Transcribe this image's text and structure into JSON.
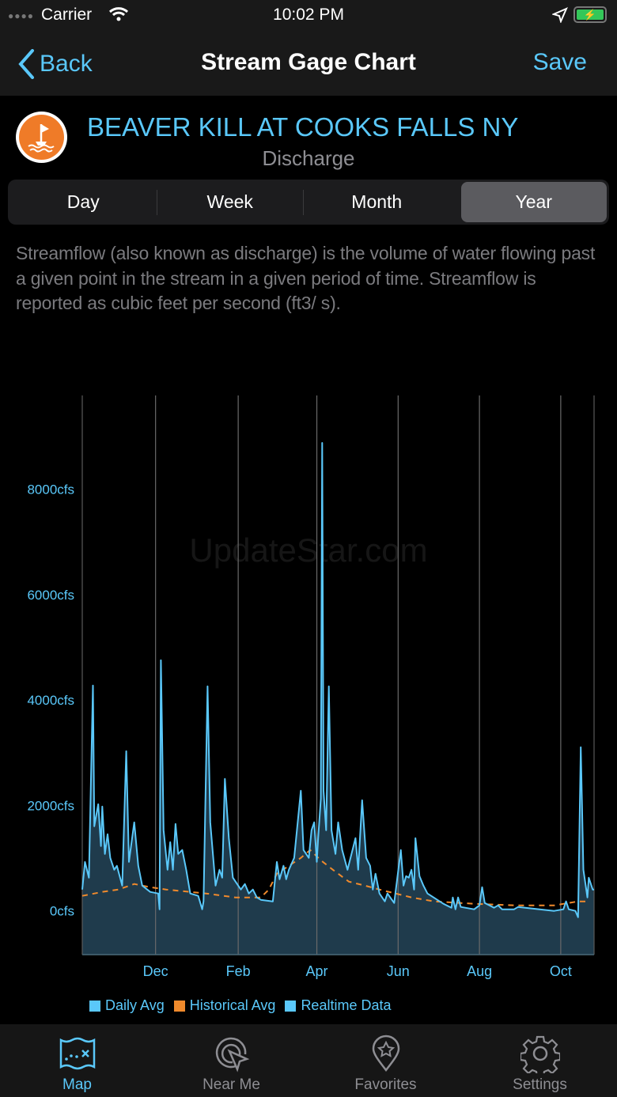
{
  "status_bar": {
    "carrier": "Carrier",
    "time": "10:02 PM",
    "battery_color": "#34c759"
  },
  "nav": {
    "back_label": "Back",
    "title": "Stream Gage Chart",
    "save_label": "Save"
  },
  "station": {
    "name": "BEAVER KILL AT COOKS FALLS NY",
    "parameter": "Discharge",
    "icon": "buoy-flag-icon",
    "icon_color": "#ef7b28"
  },
  "segments": {
    "items": [
      "Day",
      "Week",
      "Month",
      "Year"
    ],
    "selected": "Year"
  },
  "description": "Streamflow (also known as discharge) is the volume of water flowing past a given point in the stream in a given period of time. Streamflow is reported as cubic feet per second (ft3/ s).",
  "watermark": "UpdateStar.com",
  "chart_data": {
    "type": "area",
    "ylim": [
      -830,
      9780
    ],
    "y_ticks": [
      0,
      2000,
      4000,
      6000,
      8000
    ],
    "y_tick_labels": [
      "0cfs",
      "2000cfs",
      "4000cfs",
      "6000cfs",
      "8000cfs"
    ],
    "x_range": [
      "Oct 07",
      "Oct 26"
    ],
    "x_ticks": [
      "Dec 01",
      "Feb 01",
      "Apr 01",
      "Jun 01",
      "Aug 01",
      "Oct 01"
    ],
    "x_tick_labels": [
      "Dec",
      "Feb",
      "Apr",
      "Jun",
      "Aug",
      "Oct"
    ],
    "grid": "vertical",
    "legend": {
      "position": "bottom",
      "items": [
        {
          "label": "Daily Avg",
          "color": "#5ac8fa"
        },
        {
          "label": "Historical Avg",
          "color": "#f08a2c"
        },
        {
          "label": "Realtime Data",
          "color": "#5ac8fa"
        }
      ]
    },
    "series": [
      {
        "name": "Daily Avg",
        "color": "#5ac8fa",
        "fill": "#1f3b4c",
        "points": [
          [
            "Oct 07",
            405
          ],
          [
            "Oct 09",
            930
          ],
          [
            "Oct 12",
            630
          ],
          [
            "Oct 15",
            4275
          ],
          [
            "Oct 16",
            1605
          ],
          [
            "Oct 19",
            2025
          ],
          [
            "Oct 21",
            1230
          ],
          [
            "Oct 22",
            1980
          ],
          [
            "Oct 24",
            1080
          ],
          [
            "Oct 26",
            1455
          ],
          [
            "Oct 28",
            1005
          ],
          [
            "Oct 31",
            780
          ],
          [
            "Nov 02",
            855
          ],
          [
            "Nov 06",
            480
          ],
          [
            "Nov 09",
            3030
          ],
          [
            "Nov 11",
            930
          ],
          [
            "Nov 15",
            1680
          ],
          [
            "Nov 18",
            855
          ],
          [
            "Nov 21",
            480
          ],
          [
            "Nov 27",
            360
          ],
          [
            "Dec 03",
            330
          ],
          [
            "Dec 04",
            30
          ],
          [
            "Dec 05",
            4755
          ],
          [
            "Dec 07",
            1530
          ],
          [
            "Dec 10",
            780
          ],
          [
            "Dec 12",
            1305
          ],
          [
            "Dec 14",
            780
          ],
          [
            "Dec 16",
            1650
          ],
          [
            "Dec 18",
            1080
          ],
          [
            "Dec 21",
            1155
          ],
          [
            "Dec 24",
            780
          ],
          [
            "Dec 27",
            330
          ],
          [
            "Jan 02",
            285
          ],
          [
            "Jan 05",
            30
          ],
          [
            "Jan 06",
            180
          ],
          [
            "Jan 09",
            4260
          ],
          [
            "Jan 11",
            1680
          ],
          [
            "Jan 15",
            480
          ],
          [
            "Jan 18",
            780
          ],
          [
            "Jan 20",
            630
          ],
          [
            "Jan 22",
            2505
          ],
          [
            "Jan 25",
            1380
          ],
          [
            "Jan 28",
            630
          ],
          [
            "Feb 01",
            480
          ],
          [
            "Feb 03",
            405
          ],
          [
            "Feb 06",
            510
          ],
          [
            "Feb 09",
            330
          ],
          [
            "Feb 12",
            405
          ],
          [
            "Feb 15",
            255
          ],
          [
            "Feb 18",
            210
          ],
          [
            "Feb 27",
            180
          ],
          [
            "Mar 02",
            930
          ],
          [
            "Mar 04",
            600
          ],
          [
            "Mar 07",
            855
          ],
          [
            "Mar 09",
            600
          ],
          [
            "Mar 11",
            780
          ],
          [
            "Mar 15",
            1005
          ],
          [
            "Mar 20",
            2280
          ],
          [
            "Mar 22",
            1155
          ],
          [
            "Mar 26",
            1005
          ],
          [
            "Mar 28",
            1530
          ],
          [
            "Mar 30",
            1680
          ],
          [
            "Apr 01",
            930
          ],
          [
            "Apr 02",
            1380
          ],
          [
            "Apr 04",
            2130
          ],
          [
            "Apr 05",
            8880
          ],
          [
            "Apr 06",
            2280
          ],
          [
            "Apr 08",
            1530
          ],
          [
            "Apr 10",
            4260
          ],
          [
            "Apr 12",
            1530
          ],
          [
            "Apr 15",
            1080
          ],
          [
            "Apr 17",
            1680
          ],
          [
            "Apr 20",
            1155
          ],
          [
            "Apr 24",
            780
          ],
          [
            "Apr 30",
            1380
          ],
          [
            "May 02",
            780
          ],
          [
            "May 05",
            2100
          ],
          [
            "May 08",
            1005
          ],
          [
            "May 11",
            855
          ],
          [
            "May 13",
            405
          ],
          [
            "May 15",
            705
          ],
          [
            "May 18",
            330
          ],
          [
            "May 22",
            180
          ],
          [
            "May 24",
            330
          ],
          [
            "May 29",
            150
          ],
          [
            "Jun 03",
            1155
          ],
          [
            "Jun 05",
            480
          ],
          [
            "Jun 07",
            660
          ],
          [
            "Jun 09",
            630
          ],
          [
            "Jun 11",
            780
          ],
          [
            "Jun 13",
            405
          ],
          [
            "Jun 14",
            1380
          ],
          [
            "Jun 17",
            660
          ],
          [
            "Jun 20",
            480
          ],
          [
            "Jun 23",
            330
          ],
          [
            "Jul 05",
            135
          ],
          [
            "Jul 11",
            60
          ],
          [
            "Jul 12",
            255
          ],
          [
            "Jul 14",
            30
          ],
          [
            "Jul 16",
            255
          ],
          [
            "Jul 18",
            75
          ],
          [
            "Jul 28",
            30
          ],
          [
            "Aug 01",
            105
          ],
          [
            "Aug 03",
            450
          ],
          [
            "Aug 05",
            150
          ],
          [
            "Aug 12",
            60
          ],
          [
            "Aug 15",
            105
          ],
          [
            "Aug 18",
            30
          ],
          [
            "Aug 27",
            30
          ],
          [
            "Aug 30",
            75
          ],
          [
            "Sep 26",
            0
          ],
          [
            "Oct 03",
            30
          ],
          [
            "Oct 05",
            180
          ],
          [
            "Oct 07",
            30
          ],
          [
            "Oct 12",
            0
          ],
          [
            "Oct 14",
            -120
          ],
          [
            "Oct 16",
            3105
          ],
          [
            "Oct 18",
            780
          ],
          [
            "Oct 21",
            255
          ],
          [
            "Oct 22",
            630
          ],
          [
            "Oct 25",
            405
          ],
          [
            "Oct 26",
            405
          ]
        ]
      },
      {
        "name": "Historical Avg",
        "color": "#f08a2c",
        "dashed": true,
        "points": [
          [
            "Oct 07",
            285
          ],
          [
            "Oct 22",
            360
          ],
          [
            "Nov 03",
            405
          ],
          [
            "Nov 15",
            510
          ],
          [
            "Nov 27",
            450
          ],
          [
            "Dec 09",
            405
          ],
          [
            "Dec 27",
            360
          ],
          [
            "Jan 08",
            330
          ],
          [
            "Jan 30",
            255
          ],
          [
            "Feb 18",
            255
          ],
          [
            "Feb 24",
            405
          ],
          [
            "Mar 02",
            705
          ],
          [
            "Mar 11",
            855
          ],
          [
            "Mar 20",
            1005
          ],
          [
            "Mar 27",
            1155
          ],
          [
            "Apr 04",
            960
          ],
          [
            "Apr 13",
            780
          ],
          [
            "Apr 25",
            555
          ],
          [
            "May 07",
            480
          ],
          [
            "May 18",
            405
          ],
          [
            "May 30",
            330
          ],
          [
            "Jun 11",
            255
          ],
          [
            "Jun 28",
            180
          ],
          [
            "Jul 28",
            135
          ],
          [
            "Aug 27",
            105
          ],
          [
            "Sep 26",
            105
          ],
          [
            "Oct 14",
            180
          ],
          [
            "Oct 23",
            180
          ]
        ]
      }
    ]
  },
  "tabs": [
    {
      "label": "Map",
      "icon": "map-icon",
      "active": true
    },
    {
      "label": "Near Me",
      "icon": "near-me-icon",
      "active": false
    },
    {
      "label": "Favorites",
      "icon": "favorites-pin-icon",
      "active": false
    },
    {
      "label": "Settings",
      "icon": "gear-icon",
      "active": false
    }
  ]
}
